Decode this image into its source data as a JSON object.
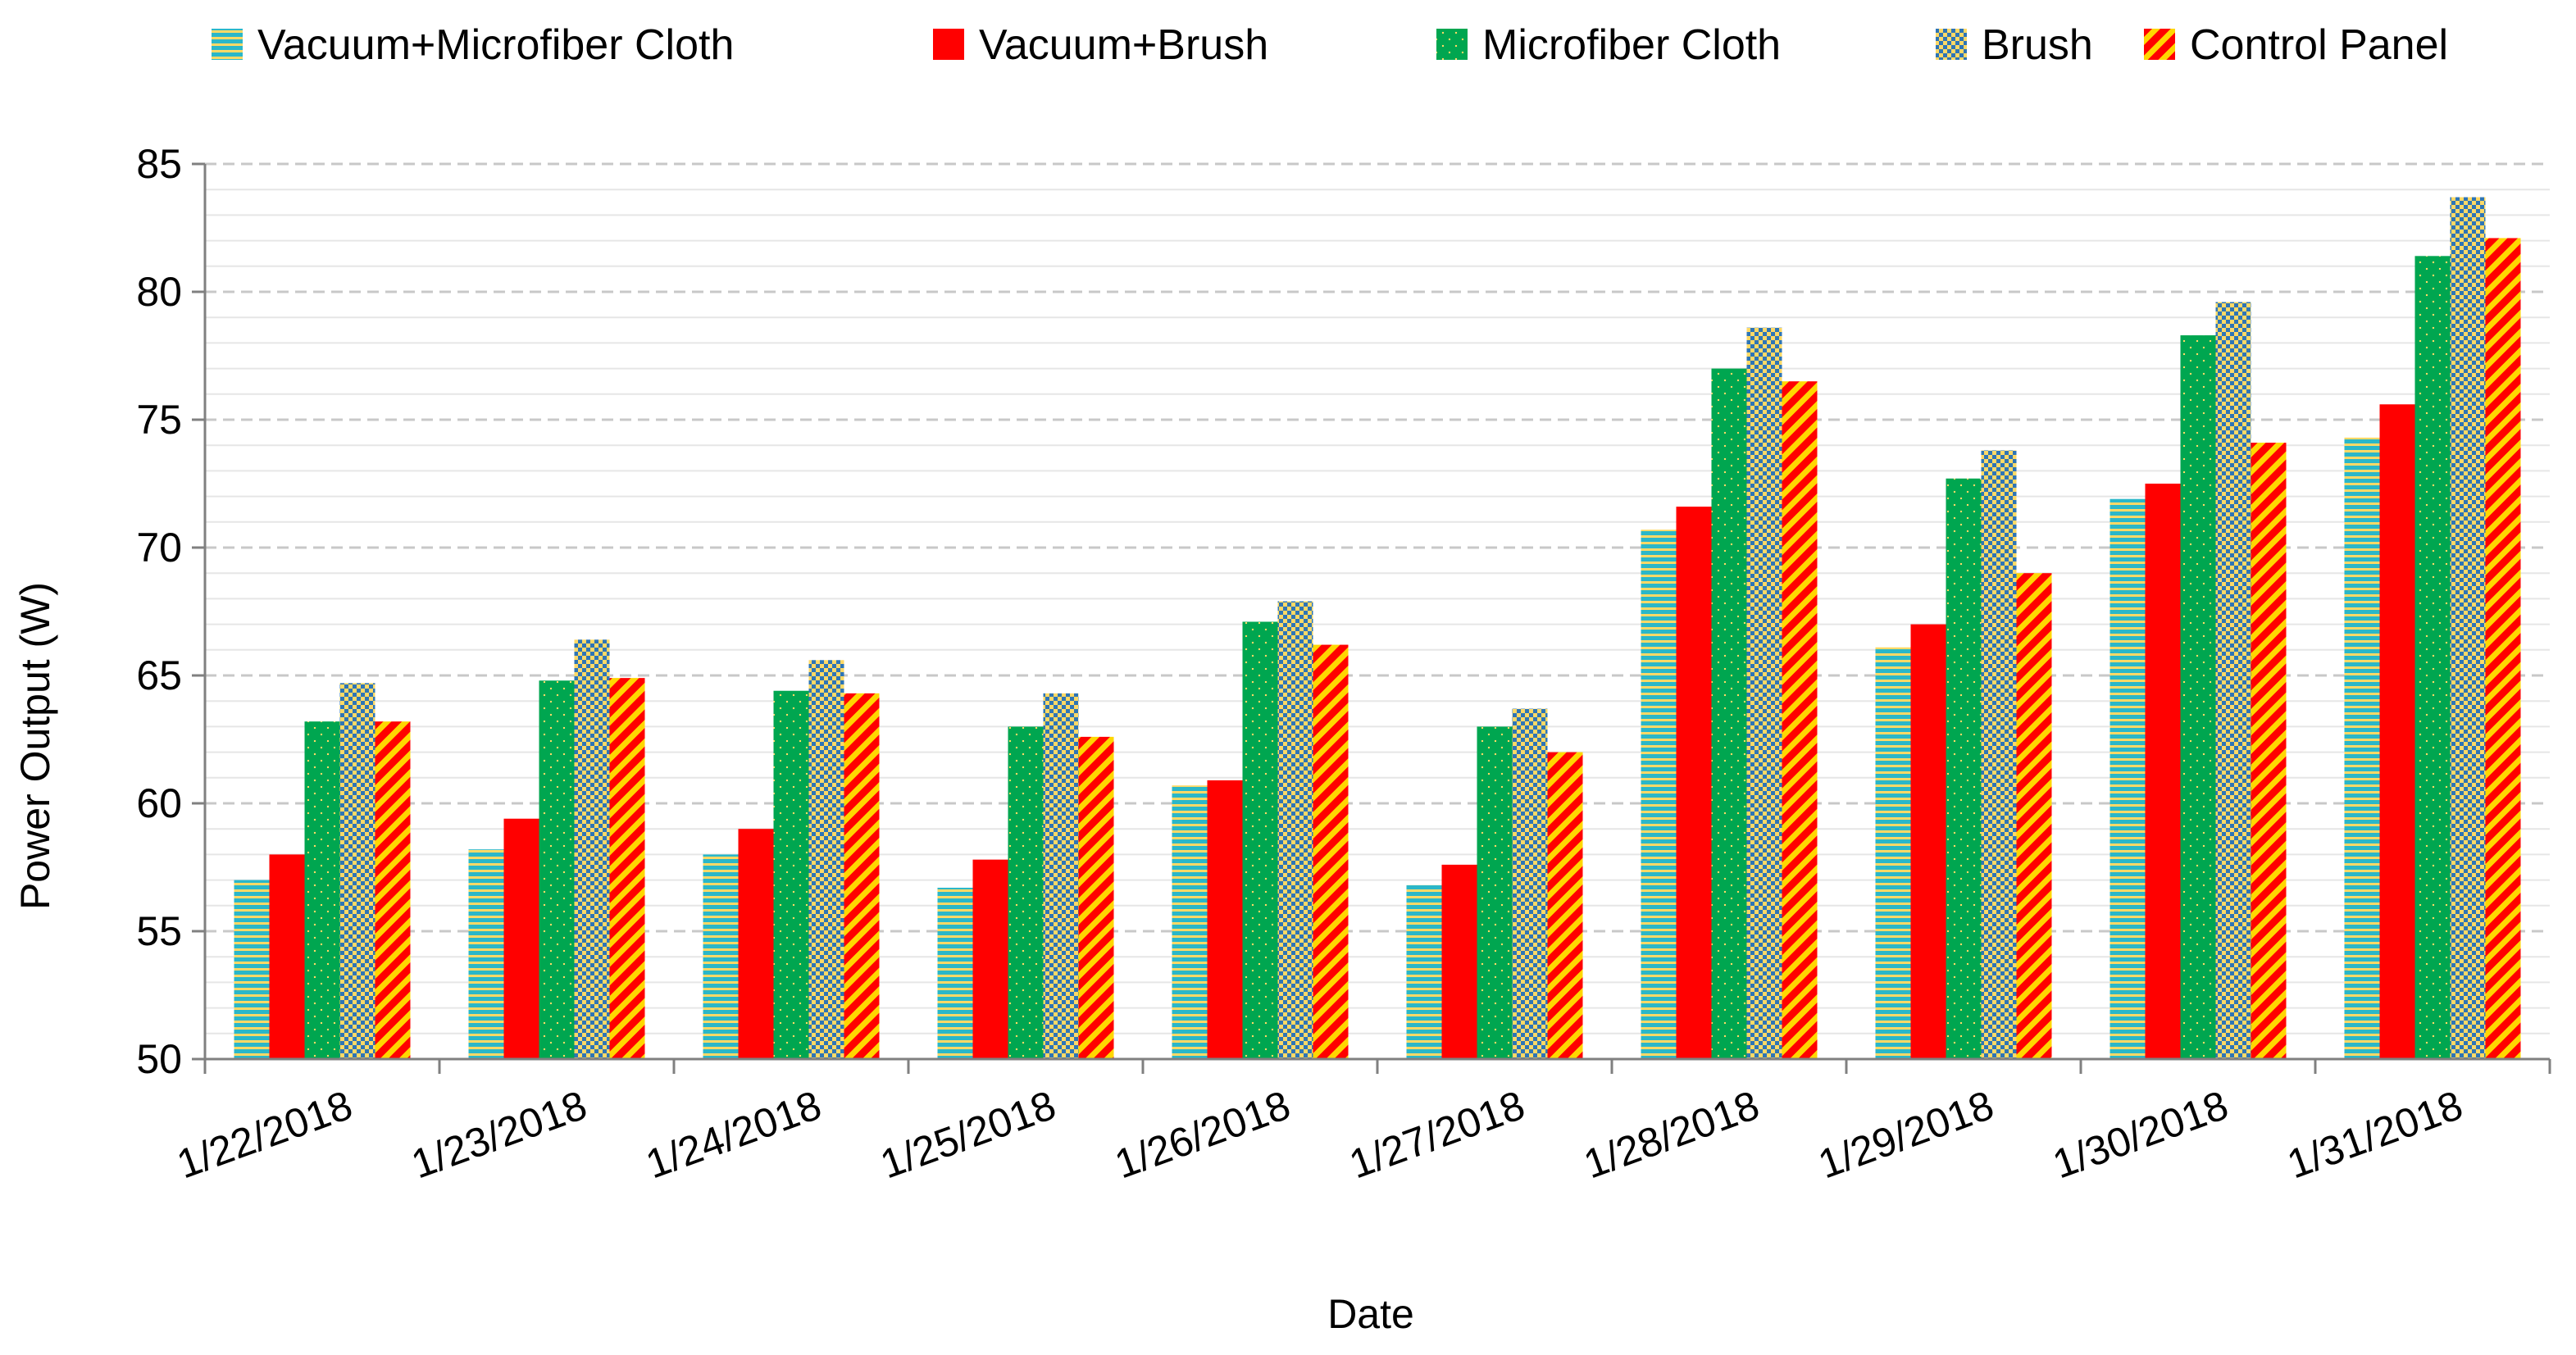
{
  "chart_data": {
    "type": "bar",
    "title": "",
    "xlabel": "Date",
    "ylabel": "Power Output (W)",
    "ylim": [
      50,
      85
    ],
    "y_major_step": 5,
    "y_minor_step": 1,
    "grid": true,
    "legend_position": "top",
    "categories": [
      "1/22/2018",
      "1/23/2018",
      "1/24/2018",
      "1/25/2018",
      "1/26/2018",
      "1/27/2018",
      "1/28/2018",
      "1/29/2018",
      "1/30/2018",
      "1/31/2018"
    ],
    "y_ticks": [
      "50",
      "55",
      "60",
      "65",
      "70",
      "75",
      "80",
      "85"
    ],
    "series": [
      {
        "name": "Vacuum+Microfiber Cloth",
        "pattern": "horizontal-stripes",
        "colors": [
          "#2bb7c8",
          "#ffd966"
        ],
        "values": [
          57.0,
          58.2,
          58.0,
          56.7,
          60.7,
          56.8,
          70.7,
          66.1,
          71.9,
          74.3
        ]
      },
      {
        "name": "Vacuum+Brush",
        "pattern": "solid",
        "colors": [
          "#ff0000"
        ],
        "values": [
          58.0,
          59.4,
          59.0,
          57.8,
          60.9,
          57.6,
          71.6,
          67.0,
          72.5,
          75.6
        ]
      },
      {
        "name": "Microfiber Cloth",
        "pattern": "dots",
        "colors": [
          "#00a650",
          "#ffd966"
        ],
        "values": [
          63.2,
          64.8,
          64.4,
          63.0,
          67.1,
          63.0,
          77.0,
          72.7,
          78.3,
          81.4
        ]
      },
      {
        "name": "Brush",
        "pattern": "checker",
        "colors": [
          "#2e75b6",
          "#ffd966"
        ],
        "values": [
          64.7,
          66.4,
          65.6,
          64.3,
          67.9,
          63.7,
          78.6,
          73.8,
          79.6,
          83.7
        ]
      },
      {
        "name": "Control Panel",
        "pattern": "diagonal-stripes",
        "colors": [
          "#ff0000",
          "#ffd700"
        ],
        "values": [
          63.2,
          64.9,
          64.3,
          62.6,
          66.2,
          62.0,
          76.5,
          69.0,
          74.1,
          82.1
        ]
      }
    ]
  }
}
